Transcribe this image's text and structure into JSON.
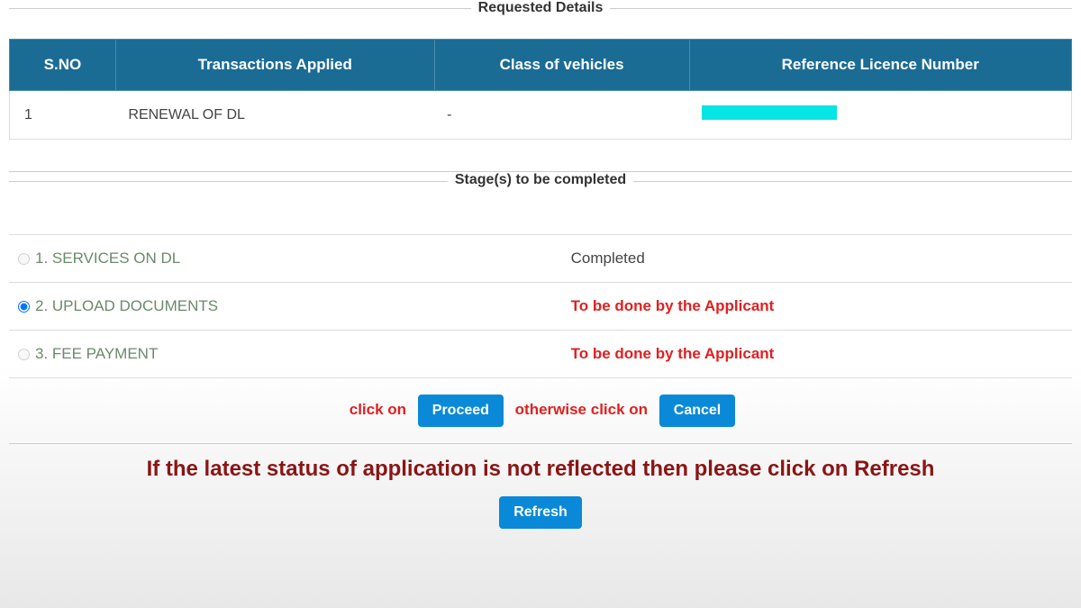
{
  "sections": {
    "requested_details_title": "Requested Details",
    "stages_title": "Stage(s) to be completed"
  },
  "details_table": {
    "columns": [
      "S.NO",
      "Transactions Applied",
      "Class of vehicles",
      "Reference Licence Number"
    ],
    "rows": [
      {
        "sno": "1",
        "transaction": "RENEWAL OF DL",
        "class": "-",
        "ref_redacted": true
      }
    ],
    "header_bg": "#1b6c95",
    "header_color": "#ffffff"
  },
  "stages": [
    {
      "num": "1.",
      "label": "SERVICES ON DL",
      "status": "Completed",
      "status_type": "completed",
      "selected": false
    },
    {
      "num": "2.",
      "label": "UPLOAD DOCUMENTS",
      "status": "To be done by the Applicant",
      "status_type": "pending",
      "selected": true
    },
    {
      "num": "3.",
      "label": "FEE PAYMENT",
      "status": "To be done by the Applicant",
      "status_type": "pending",
      "selected": false
    }
  ],
  "actions": {
    "click_on": "click on",
    "proceed": "Proceed",
    "otherwise": "otherwise click on",
    "cancel": "Cancel"
  },
  "refresh": {
    "message": "If the latest status of application is not reflected then please click on Refresh",
    "button": "Refresh"
  },
  "colors": {
    "pending_text": "#e02020",
    "completed_text": "#444444",
    "stage_label": "#6a8a6a",
    "button_bg": "#0a89d8",
    "refresh_heading": "#8a1515",
    "redacted_bg": "#06e5e5"
  }
}
